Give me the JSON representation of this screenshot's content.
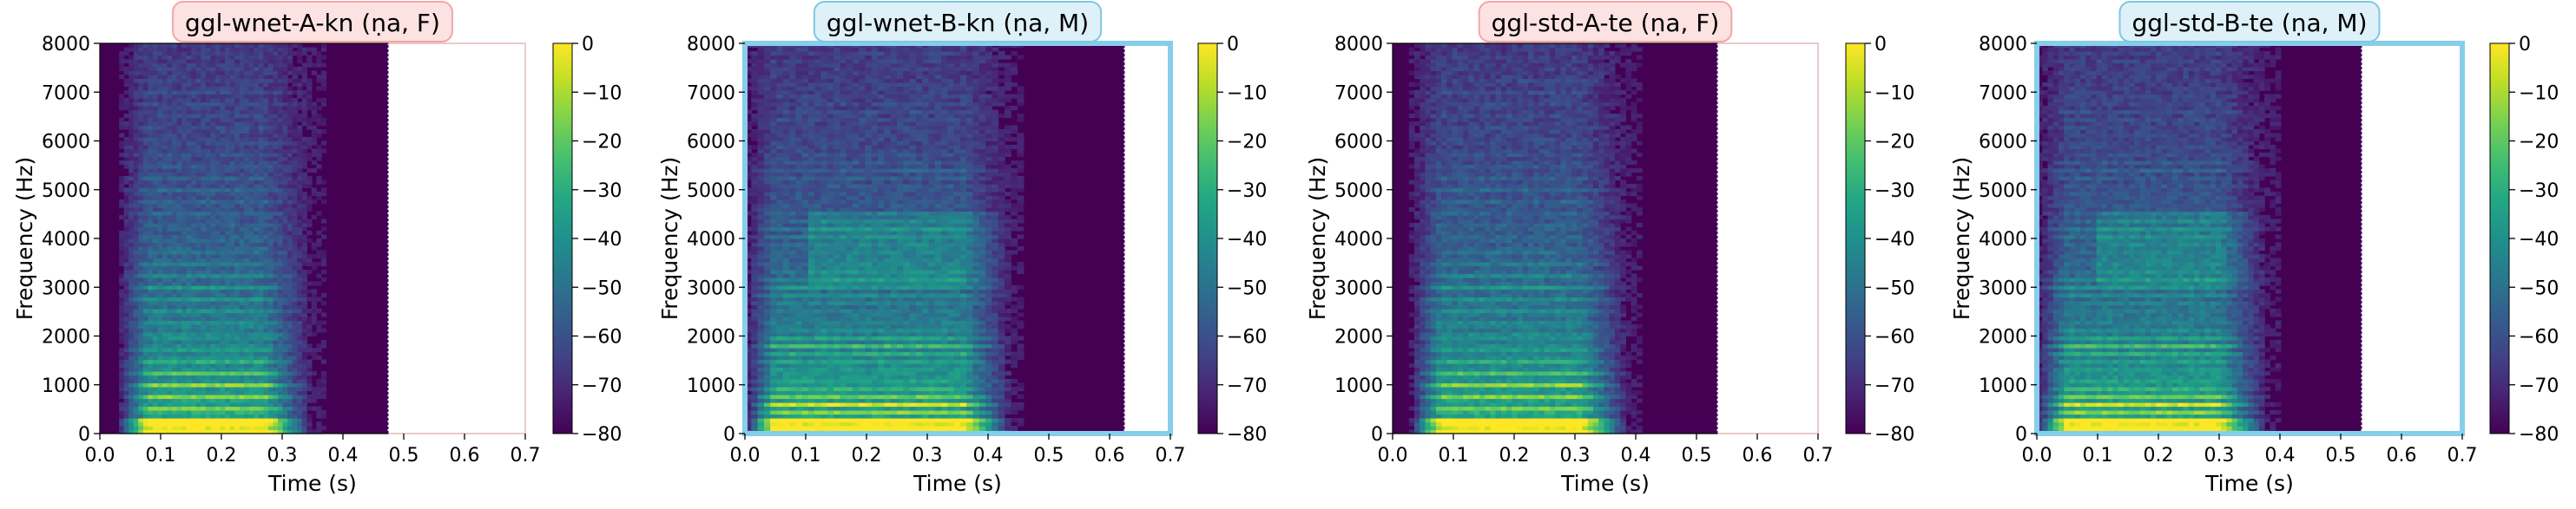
{
  "figure": {
    "colormap": "viridis",
    "colorbar_ticks": [
      "0",
      "−10",
      "−20",
      "−30",
      "−40",
      "−50",
      "−60",
      "−70",
      "−80"
    ],
    "colorbar_range": [
      -80,
      0
    ],
    "x_ticks": [
      "0.0",
      "0.1",
      "0.2",
      "0.3",
      "0.4",
      "0.5",
      "0.6",
      "0.7"
    ],
    "y_ticks": [
      "0",
      "1000",
      "2000",
      "3000",
      "4000",
      "5000",
      "6000",
      "7000",
      "8000"
    ],
    "xlabel": "Time (s)",
    "ylabel": "Frequency (Hz)"
  },
  "chart_data": [
    {
      "type": "heatmap",
      "title": "ggl-wnet-A-kn (ṇa, F)",
      "title_bg": "#fde2e2",
      "title_border": "#f4a6a6",
      "frame_color": "#f8c8c8",
      "frame_style": "thin",
      "xlabel": "Time (s)",
      "ylabel": "Frequency (Hz)",
      "xlim": [
        0,
        0.7
      ],
      "ylim": [
        0,
        8000
      ],
      "duration": 0.475,
      "voice": "F",
      "energy_end": 0.33,
      "onset": 0.03
    },
    {
      "type": "heatmap",
      "title": "ggl-wnet-B-kn (ṇa, M)",
      "title_bg": "#dff1f8",
      "title_border": "#7ec8e3",
      "frame_color": "#87ceeb",
      "frame_style": "thick",
      "xlabel": "Time (s)",
      "ylabel": "Frequency (Hz)",
      "xlim": [
        0,
        0.7
      ],
      "ylim": [
        0,
        8000
      ],
      "duration": 0.625,
      "voice": "M",
      "energy_end": 0.42,
      "onset": 0.0
    },
    {
      "type": "heatmap",
      "title": "ggl-std-A-te (ṇa, F)",
      "title_bg": "#fde2e2",
      "title_border": "#f4a6a6",
      "frame_color": "#f8c8c8",
      "frame_style": "thin",
      "xlabel": "Time (s)",
      "ylabel": "Frequency (Hz)",
      "xlim": [
        0,
        0.7
      ],
      "ylim": [
        0,
        8000
      ],
      "duration": 0.535,
      "voice": "F",
      "energy_end": 0.37,
      "onset": 0.03
    },
    {
      "type": "heatmap",
      "title": "ggl-std-B-te (ṇa, M)",
      "title_bg": "#dff1f8",
      "title_border": "#7ec8e3",
      "frame_color": "#87ceeb",
      "frame_style": "thick",
      "xlabel": "Time (s)",
      "ylabel": "Frequency (Hz)",
      "xlim": [
        0,
        0.7
      ],
      "ylim": [
        0,
        8000
      ],
      "duration": 0.535,
      "voice": "M",
      "energy_end": 0.36,
      "onset": 0.0
    }
  ]
}
